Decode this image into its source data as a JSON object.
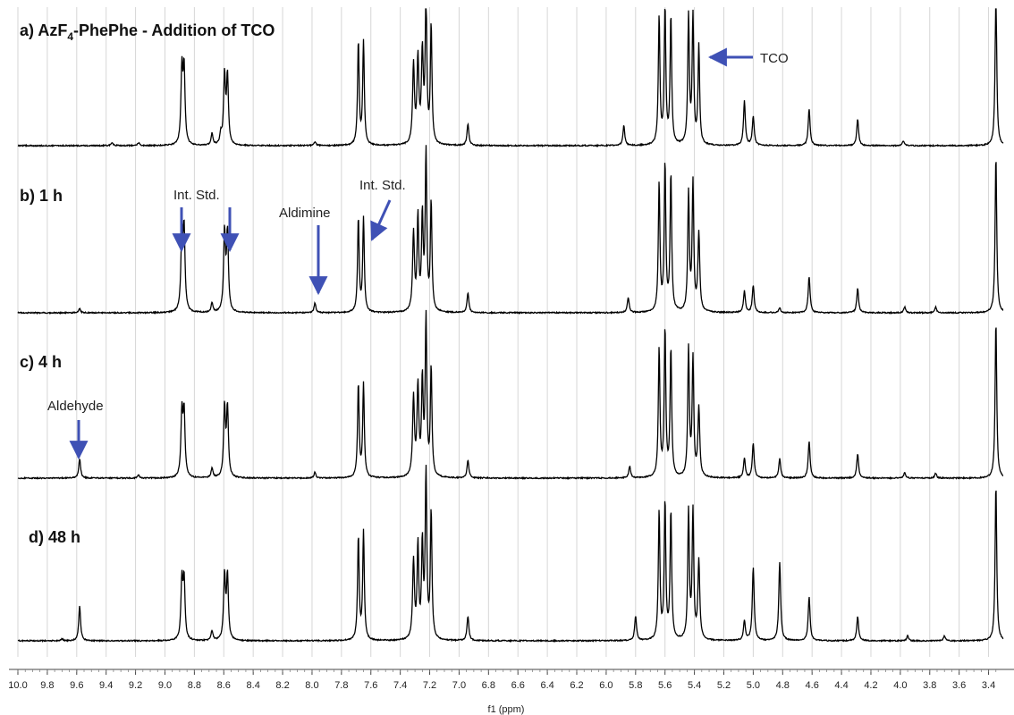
{
  "chart_data": {
    "type": "line",
    "xlabel": "f1 (ppm)",
    "xlim": [
      10.0,
      3.3
    ],
    "x_reversed": true,
    "x_ticks": [
      "10.0",
      "9.8",
      "9.6",
      "9.4",
      "9.2",
      "9.0",
      "8.8",
      "8.6",
      "8.4",
      "8.2",
      "8.0",
      "7.8",
      "7.6",
      "7.4",
      "7.2",
      "7.0",
      "6.8",
      "6.6",
      "6.4",
      "6.2",
      "6.0",
      "5.8",
      "5.6",
      "5.4",
      "5.2",
      "5.0",
      "4.8",
      "4.6",
      "4.4",
      "4.2",
      "4.0",
      "3.8",
      "3.6",
      "3.4"
    ],
    "grid": true,
    "arrow_color": "#3f51b5",
    "line_color": "#000000",
    "panels": [
      {
        "label_main": "a) AzF",
        "label_sub": "4",
        "label_rest": "-PhePhe - Addition of TCO",
        "peaks": [
          {
            "ppm": 9.36,
            "h": 0.03
          },
          {
            "ppm": 9.18,
            "h": 0.03
          },
          {
            "ppm": 8.885,
            "h": 0.75
          },
          {
            "ppm": 8.87,
            "h": 0.75
          },
          {
            "ppm": 8.68,
            "h": 0.12
          },
          {
            "ppm": 8.62,
            "h": 0.1
          },
          {
            "ppm": 8.595,
            "h": 0.7
          },
          {
            "ppm": 8.575,
            "h": 0.7
          },
          {
            "ppm": 7.98,
            "h": 0.04
          },
          {
            "ppm": 7.685,
            "h": 1.05
          },
          {
            "ppm": 7.65,
            "h": 1.05
          },
          {
            "ppm": 7.31,
            "h": 0.8
          },
          {
            "ppm": 7.28,
            "h": 0.85
          },
          {
            "ppm": 7.25,
            "h": 0.9
          },
          {
            "ppm": 7.225,
            "h": 1.5
          },
          {
            "ppm": 7.19,
            "h": 1.2
          },
          {
            "ppm": 6.94,
            "h": 0.22
          },
          {
            "ppm": 5.88,
            "h": 0.2
          },
          {
            "ppm": 5.64,
            "h": 1.3
          },
          {
            "ppm": 5.6,
            "h": 1.4
          },
          {
            "ppm": 5.56,
            "h": 1.3
          },
          {
            "ppm": 5.44,
            "h": 1.3
          },
          {
            "ppm": 5.41,
            "h": 1.3
          },
          {
            "ppm": 5.37,
            "h": 1.0
          },
          {
            "ppm": 5.06,
            "h": 0.45
          },
          {
            "ppm": 5.0,
            "h": 0.3
          },
          {
            "ppm": 4.62,
            "h": 0.37
          },
          {
            "ppm": 4.29,
            "h": 0.27
          },
          {
            "ppm": 3.98,
            "h": 0.05
          },
          {
            "ppm": 3.35,
            "h": 1.6
          }
        ]
      },
      {
        "label": "b) 1 h",
        "peaks": [
          {
            "ppm": 9.58,
            "h": 0.04
          },
          {
            "ppm": 8.885,
            "h": 0.8
          },
          {
            "ppm": 8.87,
            "h": 0.8
          },
          {
            "ppm": 8.68,
            "h": 0.1
          },
          {
            "ppm": 8.595,
            "h": 0.8
          },
          {
            "ppm": 8.575,
            "h": 0.8
          },
          {
            "ppm": 7.98,
            "h": 0.1
          },
          {
            "ppm": 7.685,
            "h": 0.95
          },
          {
            "ppm": 7.65,
            "h": 0.95
          },
          {
            "ppm": 7.31,
            "h": 0.8
          },
          {
            "ppm": 7.28,
            "h": 0.95
          },
          {
            "ppm": 7.25,
            "h": 0.95
          },
          {
            "ppm": 7.225,
            "h": 1.6
          },
          {
            "ppm": 7.19,
            "h": 1.1
          },
          {
            "ppm": 6.94,
            "h": 0.2
          },
          {
            "ppm": 5.85,
            "h": 0.15
          },
          {
            "ppm": 5.64,
            "h": 1.3
          },
          {
            "ppm": 5.6,
            "h": 1.5
          },
          {
            "ppm": 5.56,
            "h": 1.4
          },
          {
            "ppm": 5.44,
            "h": 1.2
          },
          {
            "ppm": 5.41,
            "h": 1.3
          },
          {
            "ppm": 5.37,
            "h": 0.8
          },
          {
            "ppm": 5.06,
            "h": 0.22
          },
          {
            "ppm": 5.0,
            "h": 0.28
          },
          {
            "ppm": 4.82,
            "h": 0.05
          },
          {
            "ppm": 4.62,
            "h": 0.37
          },
          {
            "ppm": 4.29,
            "h": 0.25
          },
          {
            "ppm": 3.97,
            "h": 0.06
          },
          {
            "ppm": 3.76,
            "h": 0.06
          },
          {
            "ppm": 3.35,
            "h": 1.6
          }
        ]
      },
      {
        "label": "c) 4 h",
        "peaks": [
          {
            "ppm": 9.58,
            "h": 0.2
          },
          {
            "ppm": 9.18,
            "h": 0.03
          },
          {
            "ppm": 8.885,
            "h": 0.65
          },
          {
            "ppm": 8.87,
            "h": 0.65
          },
          {
            "ppm": 8.68,
            "h": 0.1
          },
          {
            "ppm": 8.595,
            "h": 0.7
          },
          {
            "ppm": 8.575,
            "h": 0.7
          },
          {
            "ppm": 7.98,
            "h": 0.06
          },
          {
            "ppm": 7.685,
            "h": 0.95
          },
          {
            "ppm": 7.65,
            "h": 0.95
          },
          {
            "ppm": 7.31,
            "h": 0.8
          },
          {
            "ppm": 7.28,
            "h": 0.9
          },
          {
            "ppm": 7.25,
            "h": 0.95
          },
          {
            "ppm": 7.225,
            "h": 1.6
          },
          {
            "ppm": 7.19,
            "h": 1.1
          },
          {
            "ppm": 6.94,
            "h": 0.18
          },
          {
            "ppm": 5.84,
            "h": 0.12
          },
          {
            "ppm": 5.64,
            "h": 1.3
          },
          {
            "ppm": 5.6,
            "h": 1.5
          },
          {
            "ppm": 5.56,
            "h": 1.3
          },
          {
            "ppm": 5.44,
            "h": 1.3
          },
          {
            "ppm": 5.41,
            "h": 1.2
          },
          {
            "ppm": 5.37,
            "h": 0.7
          },
          {
            "ppm": 5.06,
            "h": 0.2
          },
          {
            "ppm": 5.0,
            "h": 0.35
          },
          {
            "ppm": 4.82,
            "h": 0.2
          },
          {
            "ppm": 4.62,
            "h": 0.37
          },
          {
            "ppm": 4.29,
            "h": 0.25
          },
          {
            "ppm": 3.97,
            "h": 0.06
          },
          {
            "ppm": 3.76,
            "h": 0.05
          },
          {
            "ppm": 3.35,
            "h": 1.6
          }
        ]
      },
      {
        "label": "d) 48 h",
        "peaks": [
          {
            "ppm": 9.58,
            "h": 0.35
          },
          {
            "ppm": 9.7,
            "h": 0.02
          },
          {
            "ppm": 8.885,
            "h": 0.6
          },
          {
            "ppm": 8.87,
            "h": 0.6
          },
          {
            "ppm": 8.68,
            "h": 0.1
          },
          {
            "ppm": 8.595,
            "h": 0.65
          },
          {
            "ppm": 8.575,
            "h": 0.65
          },
          {
            "ppm": 7.685,
            "h": 1.05
          },
          {
            "ppm": 7.65,
            "h": 1.1
          },
          {
            "ppm": 7.31,
            "h": 0.8
          },
          {
            "ppm": 7.28,
            "h": 0.95
          },
          {
            "ppm": 7.25,
            "h": 0.95
          },
          {
            "ppm": 7.225,
            "h": 1.7
          },
          {
            "ppm": 7.19,
            "h": 1.3
          },
          {
            "ppm": 6.94,
            "h": 0.25
          },
          {
            "ppm": 5.8,
            "h": 0.25
          },
          {
            "ppm": 5.64,
            "h": 1.3
          },
          {
            "ppm": 5.6,
            "h": 1.4
          },
          {
            "ppm": 5.56,
            "h": 1.3
          },
          {
            "ppm": 5.44,
            "h": 1.3
          },
          {
            "ppm": 5.41,
            "h": 1.3
          },
          {
            "ppm": 5.37,
            "h": 0.8
          },
          {
            "ppm": 5.06,
            "h": 0.2
          },
          {
            "ppm": 5.0,
            "h": 0.75
          },
          {
            "ppm": 4.82,
            "h": 0.8
          },
          {
            "ppm": 4.62,
            "h": 0.45
          },
          {
            "ppm": 4.29,
            "h": 0.25
          },
          {
            "ppm": 3.95,
            "h": 0.05
          },
          {
            "ppm": 3.7,
            "h": 0.05
          },
          {
            "ppm": 3.35,
            "h": 1.6
          }
        ]
      }
    ],
    "annotations": [
      {
        "text": "TCO",
        "panel": 0,
        "ppm": 5.36,
        "arrow": "left"
      },
      {
        "text": "Int. Std.",
        "panel": 1,
        "ppm_list": [
          8.88,
          8.585
        ],
        "arrow": "down"
      },
      {
        "text": "Aldimine",
        "panel": 1,
        "ppm": 7.98,
        "arrow": "down"
      },
      {
        "text": "Int. Std.",
        "panel": 1,
        "ppm": 7.66,
        "arrow": "diagonal"
      },
      {
        "text": "Aldehyde",
        "panel": 2,
        "ppm": 9.58,
        "arrow": "down"
      }
    ]
  }
}
